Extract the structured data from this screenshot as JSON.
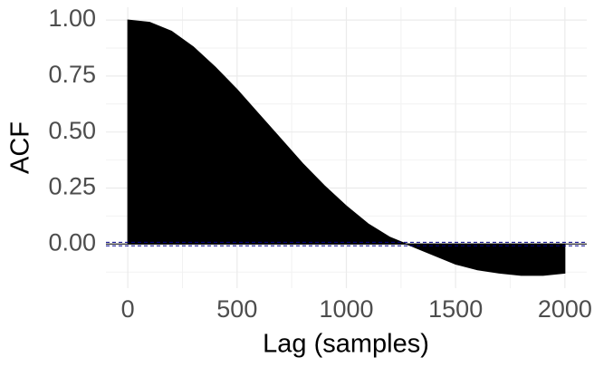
{
  "chart_data": {
    "type": "area",
    "xlabel": "Lag (samples)",
    "ylabel": "ACF",
    "x": [
      0,
      100,
      200,
      300,
      400,
      500,
      600,
      700,
      800,
      900,
      1000,
      1100,
      1200,
      1300,
      1400,
      1500,
      1600,
      1700,
      1800,
      1900,
      2000
    ],
    "values": [
      1.0,
      0.99,
      0.95,
      0.88,
      0.79,
      0.69,
      0.58,
      0.47,
      0.36,
      0.26,
      0.17,
      0.09,
      0.03,
      -0.01,
      -0.05,
      -0.09,
      -0.115,
      -0.13,
      -0.14,
      -0.14,
      -0.13
    ],
    "color": "#000000",
    "hlines": [
      -0.008,
      0.008
    ],
    "hline_color": "#00008b",
    "xlim": [
      -100,
      2100
    ],
    "xticks": [
      0,
      500,
      1000,
      1500,
      2000
    ],
    "ylim": [
      -0.197,
      1.057
    ],
    "yticks": [
      {
        "value": 0,
        "label": "0.00"
      },
      {
        "value": 0.25,
        "label": "0.25"
      },
      {
        "value": 0.5,
        "label": "0.50"
      },
      {
        "value": 0.75,
        "label": "0.75"
      },
      {
        "value": 1,
        "label": "1.00"
      }
    ],
    "grid": true
  }
}
